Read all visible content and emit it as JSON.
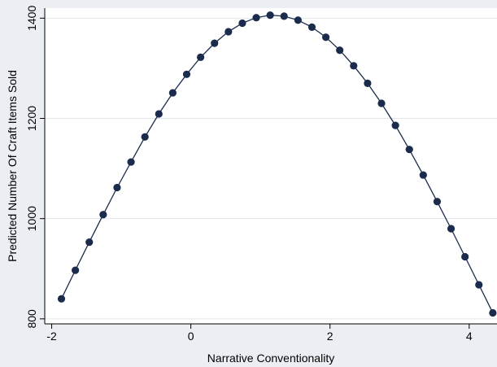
{
  "chart_data": {
    "type": "scatter",
    "title": "",
    "xlabel": "Narrative Conventionality",
    "ylabel": "Predicted Number Of Craft Items Sold",
    "xlim": [
      -2.1,
      4.4
    ],
    "ylim": [
      790,
      1420
    ],
    "x_ticks": [
      -2,
      0,
      2,
      4
    ],
    "y_ticks": [
      800,
      1000,
      1200,
      1400
    ],
    "grid": true,
    "connected": true,
    "colors": {
      "background": "#ebeef2",
      "plot_background": "#ffffff",
      "gridline": "#e1e6ec",
      "marker": "#1a2b4c",
      "line": "#1a2b4c"
    },
    "series": [
      {
        "x": [
          -1.86,
          -1.66,
          -1.46,
          -1.26,
          -1.06,
          -0.86,
          -0.66,
          -0.46,
          -0.26,
          -0.06,
          0.14,
          0.34,
          0.54,
          0.74,
          0.94,
          1.14,
          1.34,
          1.54,
          1.74,
          1.94,
          2.14,
          2.34,
          2.54,
          2.74,
          2.94,
          3.14,
          3.34,
          3.54,
          3.74,
          3.94,
          4.14,
          4.34
        ],
        "y": [
          840,
          897,
          953,
          1008,
          1062,
          1113,
          1163,
          1209,
          1251,
          1288,
          1322,
          1350,
          1373,
          1390,
          1401,
          1406,
          1404,
          1396,
          1382,
          1362,
          1336,
          1305,
          1270,
          1230,
          1186,
          1138,
          1087,
          1034,
          980,
          924,
          868,
          812
        ]
      }
    ]
  }
}
